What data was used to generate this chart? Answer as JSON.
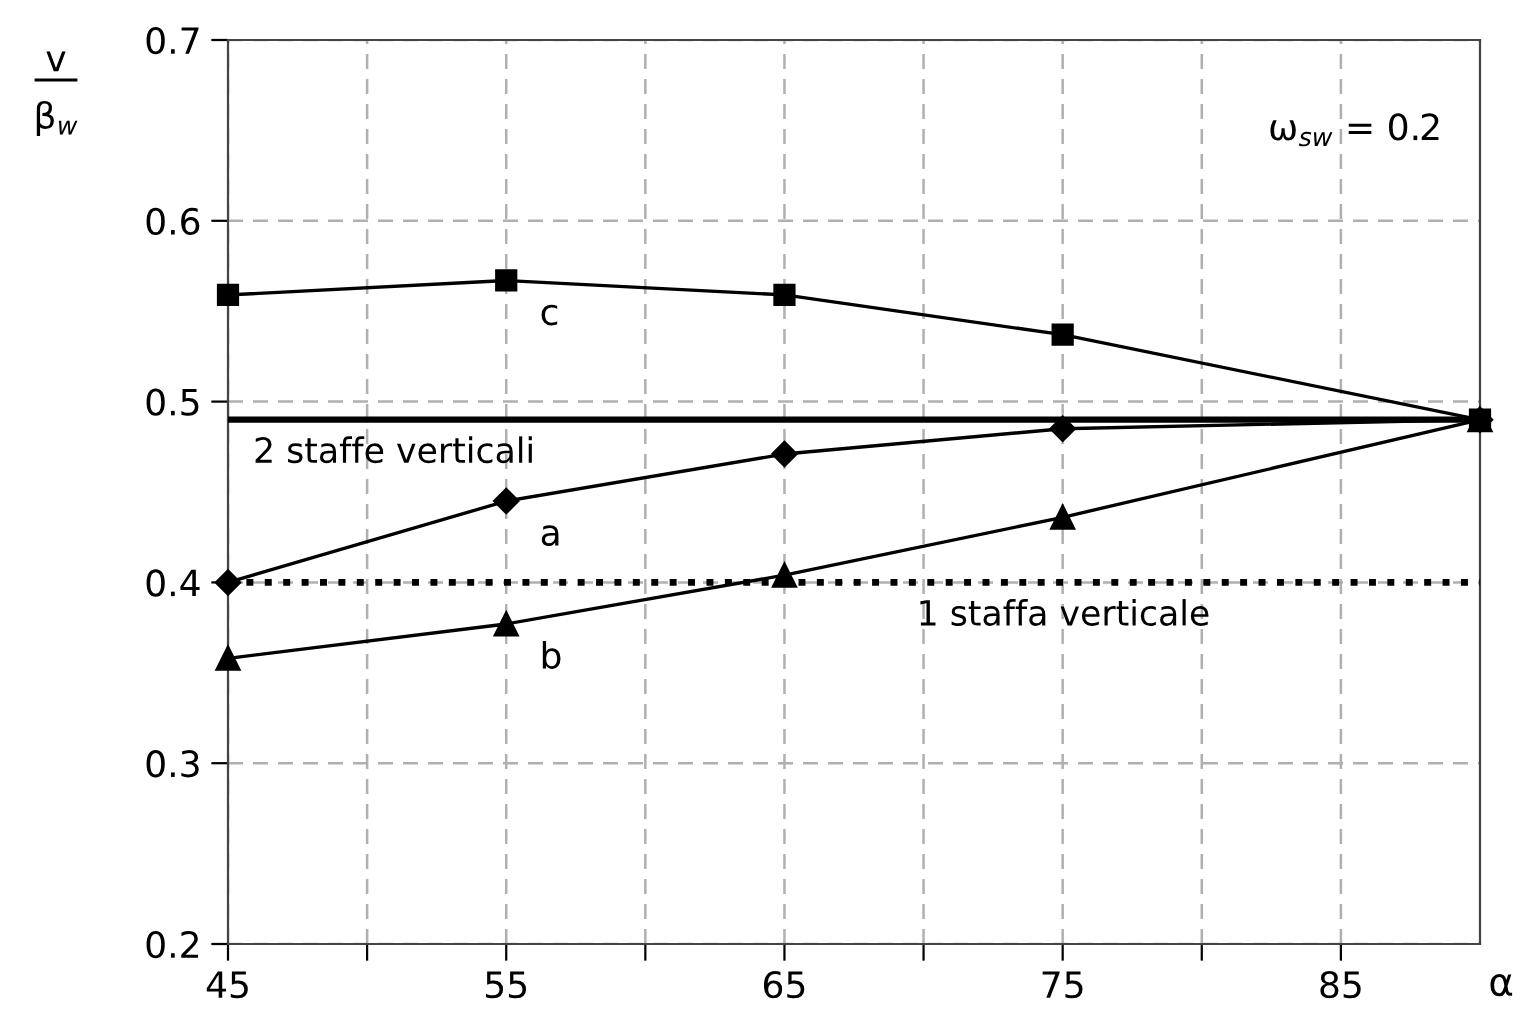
{
  "chart_data": {
    "type": "line",
    "xlabel": "α",
    "ylabel": "v\nβ$_{w}$",
    "x": [
      45,
      55,
      65,
      75,
      90
    ],
    "series": [
      {
        "name": "c",
        "color": "#000000",
        "marker": "square",
        "values": [
          0.559,
          0.567,
          0.559,
          0.537,
          0.49
        ]
      },
      {
        "name": "a",
        "color": "#000000",
        "marker": "diamond",
        "values": [
          0.4,
          0.445,
          0.471,
          0.485,
          0.49
        ]
      },
      {
        "name": "b",
        "color": "#000000",
        "marker": "triangle",
        "values": [
          0.358,
          0.377,
          0.404,
          0.436,
          0.49
        ]
      }
    ],
    "ref_lines": [
      {
        "axis": "y",
        "value": 0.49,
        "label": "2 staffe verticali",
        "color": "#000000",
        "line_style": "solid"
      },
      {
        "axis": "y",
        "value": 0.4,
        "label": "1 staffa verticale",
        "color": "#000000",
        "line_style": "dotted"
      }
    ],
    "annotations": [
      "ω$_{sw}$ = 0.2"
    ],
    "xlim": [
      45,
      90
    ],
    "ylim": [
      0.2,
      0.7
    ],
    "xticks": [
      45,
      {
        "value": 50,
        "label": null
      },
      55,
      {
        "value": 60,
        "label": null
      },
      65,
      {
        "value": 70,
        "label": null
      },
      75,
      {
        "value": 80,
        "label": null
      },
      85
    ],
    "yticks": [
      0.2,
      0.3,
      0.4,
      0.5,
      0.6,
      0.7
    ],
    "grid": true,
    "line_style": "solid",
    "legend": false
  }
}
